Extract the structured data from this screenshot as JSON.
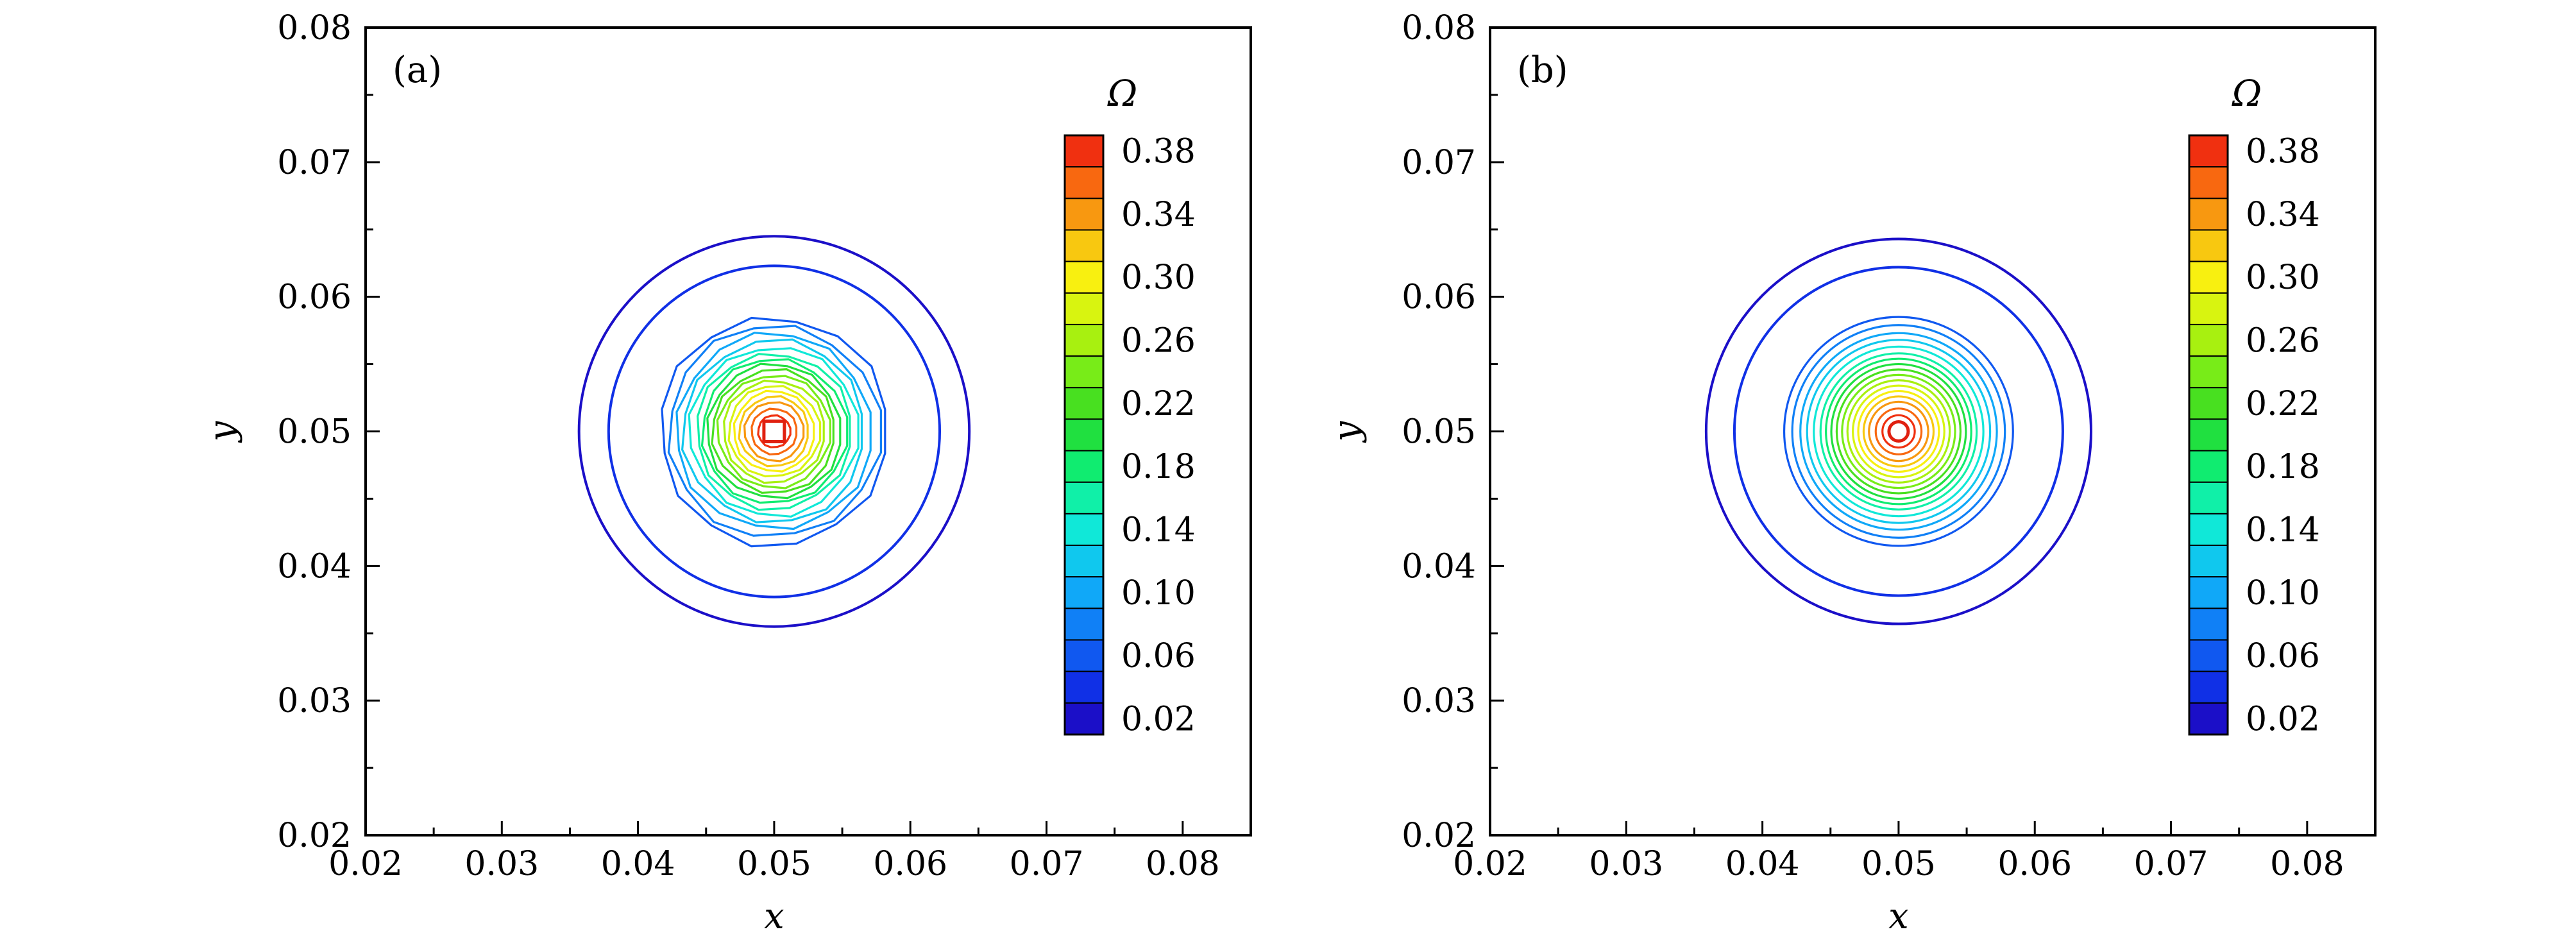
{
  "chart_data": [
    {
      "type": "contour",
      "panel_label": "(a)",
      "xlabel": "x",
      "ylabel": "y",
      "xlim": [
        0.02,
        0.085
      ],
      "ylim": [
        0.02,
        0.08
      ],
      "xticks": [
        "0.02",
        "0.03",
        "0.04",
        "0.05",
        "0.06",
        "0.07",
        "0.08"
      ],
      "yticks": [
        "0.02",
        "0.03",
        "0.04",
        "0.05",
        "0.06",
        "0.07",
        "0.08"
      ],
      "center": [
        0.05,
        0.05
      ],
      "colorbar_title": "Ω",
      "colorbar_labels": [
        "0.38",
        "0.34",
        "0.30",
        "0.26",
        "0.22",
        "0.18",
        "0.14",
        "0.10",
        "0.06",
        "0.02"
      ],
      "levels": [
        0.02,
        0.04,
        0.06,
        0.08,
        0.1,
        0.12,
        0.14,
        0.16,
        0.18,
        0.2,
        0.22,
        0.24,
        0.26,
        0.28,
        0.3,
        0.32,
        0.34,
        0.36,
        0.38
      ],
      "contour_radii": [
        0.0145,
        0.0123,
        0.0085,
        0.0079,
        0.0073,
        0.0068,
        0.0063,
        0.0058,
        0.0054,
        0.005,
        0.0046,
        0.0042,
        0.0038,
        0.0034,
        0.003,
        0.0026,
        0.0022,
        0.0017,
        0.0012
      ],
      "contour_shape": "polygonal",
      "grid": false
    },
    {
      "type": "contour",
      "panel_label": "(b)",
      "xlabel": "x",
      "ylabel": "y",
      "xlim": [
        0.02,
        0.085
      ],
      "ylim": [
        0.02,
        0.08
      ],
      "xticks": [
        "0.02",
        "0.03",
        "0.04",
        "0.05",
        "0.06",
        "0.07",
        "0.08"
      ],
      "yticks": [
        "0.02",
        "0.03",
        "0.04",
        "0.05",
        "0.06",
        "0.07",
        "0.08"
      ],
      "center": [
        0.05,
        0.05
      ],
      "colorbar_title": "Ω",
      "colorbar_labels": [
        "0.38",
        "0.34",
        "0.30",
        "0.26",
        "0.22",
        "0.18",
        "0.14",
        "0.10",
        "0.06",
        "0.02"
      ],
      "levels": [
        0.02,
        0.04,
        0.06,
        0.08,
        0.1,
        0.12,
        0.14,
        0.16,
        0.18,
        0.2,
        0.22,
        0.24,
        0.26,
        0.28,
        0.3,
        0.32,
        0.34,
        0.36,
        0.38
      ],
      "contour_radii": [
        0.0143,
        0.0122,
        0.0085,
        0.0079,
        0.0073,
        0.0068,
        0.0063,
        0.0058,
        0.0054,
        0.005,
        0.0046,
        0.0042,
        0.0038,
        0.0034,
        0.003,
        0.0026,
        0.0022,
        0.0017,
        0.0012
      ],
      "contour_shape": "circular",
      "grid": false
    }
  ],
  "colors": {
    "colormap": [
      "#1b0fc8",
      "#1030e6",
      "#1058f0",
      "#1080f6",
      "#10a8f8",
      "#10c8ee",
      "#10e8d8",
      "#10f0a8",
      "#10ec70",
      "#20e040",
      "#48e020",
      "#78ec18",
      "#a8f010",
      "#d8f410",
      "#f8f010",
      "#f8c810",
      "#f89810",
      "#f86810",
      "#f03010"
    ],
    "axis": "#000000",
    "background": "#ffffff"
  }
}
